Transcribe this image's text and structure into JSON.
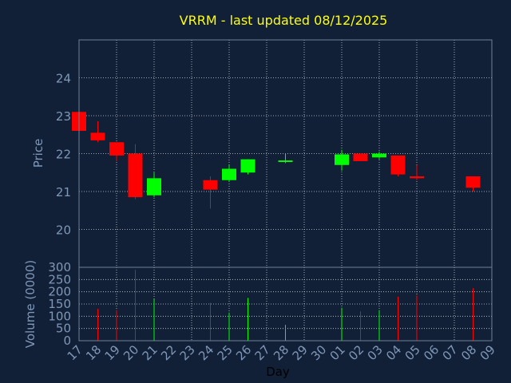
{
  "title": "VRRM - last updated 08/12/2025",
  "colors": {
    "background": "#112036",
    "plot_border": "#6e7f96",
    "grid": "#c8d0da",
    "title": "#ffff00",
    "axis_text": "#7f97b8",
    "xlabel_text": "#000000",
    "up": "#00ff00",
    "down": "#ff0000"
  },
  "chart_data": [
    {
      "type": "candlestick",
      "title": "VRRM - last updated 08/12/2025",
      "ylabel": "Price",
      "ylim": [
        19.0,
        25.0
      ],
      "yticks": [
        20,
        21,
        22,
        23,
        24
      ],
      "grid": true,
      "x_start": "17",
      "categories": [
        "17",
        "18",
        "19",
        "20",
        "21",
        "22",
        "23",
        "24",
        "25",
        "26",
        "27",
        "28",
        "29",
        "30",
        "01",
        "02",
        "03",
        "04",
        "05",
        "06",
        "07",
        "08",
        "09"
      ],
      "candles": [
        {
          "day": "17",
          "open": 23.1,
          "high": 23.1,
          "low": 22.55,
          "close": 22.6
        },
        {
          "day": "18",
          "open": 22.55,
          "high": 22.85,
          "low": 22.3,
          "close": 22.35
        },
        {
          "day": "19",
          "open": 22.3,
          "high": 22.3,
          "low": 21.8,
          "close": 21.95
        },
        {
          "day": "20",
          "open": 22.0,
          "high": 22.25,
          "low": 20.8,
          "close": 20.85
        },
        {
          "day": "21",
          "open": 20.9,
          "high": 21.5,
          "low": 20.85,
          "close": 21.35
        },
        {
          "day": "24",
          "open": 21.3,
          "high": 21.4,
          "low": 20.55,
          "close": 21.05
        },
        {
          "day": "25",
          "open": 21.3,
          "high": 21.7,
          "low": 21.25,
          "close": 21.6
        },
        {
          "day": "26",
          "open": 21.5,
          "high": 21.85,
          "low": 21.45,
          "close": 21.85
        },
        {
          "day": "28",
          "open": 21.8,
          "high": 22.0,
          "low": 21.75,
          "close": 21.82
        },
        {
          "day": "01",
          "open": 21.7,
          "high": 22.1,
          "low": 21.55,
          "close": 21.98
        },
        {
          "day": "02",
          "open": 22.0,
          "high": 22.0,
          "low": 21.8,
          "close": 21.8
        },
        {
          "day": "03",
          "open": 21.9,
          "high": 22.05,
          "low": 21.85,
          "close": 22.0
        },
        {
          "day": "04",
          "open": 21.95,
          "high": 21.95,
          "low": 21.4,
          "close": 21.45
        },
        {
          "day": "05",
          "open": 21.4,
          "high": 21.7,
          "low": 21.3,
          "close": 21.35
        },
        {
          "day": "08",
          "open": 21.4,
          "high": 21.4,
          "low": 21.0,
          "close": 21.1
        }
      ]
    },
    {
      "type": "bar",
      "xlabel": "Day",
      "ylabel": "Volume (0000)",
      "ylim": [
        0,
        300
      ],
      "yticks": [
        0,
        50,
        100,
        150,
        200,
        250,
        300
      ],
      "grid": true,
      "volumes": [
        {
          "day": "18",
          "value": 130,
          "dir": "down"
        },
        {
          "day": "19",
          "value": 125,
          "dir": "down"
        },
        {
          "day": "20",
          "value": 290,
          "dir": "down"
        },
        {
          "day": "21",
          "value": 170,
          "dir": "up"
        },
        {
          "day": "24",
          "value": 155,
          "dir": "down"
        },
        {
          "day": "25",
          "value": 115,
          "dir": "up"
        },
        {
          "day": "26",
          "value": 175,
          "dir": "up"
        },
        {
          "day": "28",
          "value": 65,
          "dir": "up"
        },
        {
          "day": "01",
          "value": 135,
          "dir": "up"
        },
        {
          "day": "02",
          "value": 120,
          "dir": "down"
        },
        {
          "day": "03",
          "value": 125,
          "dir": "up"
        },
        {
          "day": "04",
          "value": 180,
          "dir": "down"
        },
        {
          "day": "05",
          "value": 185,
          "dir": "down"
        },
        {
          "day": "08",
          "value": 215,
          "dir": "down"
        }
      ]
    }
  ]
}
